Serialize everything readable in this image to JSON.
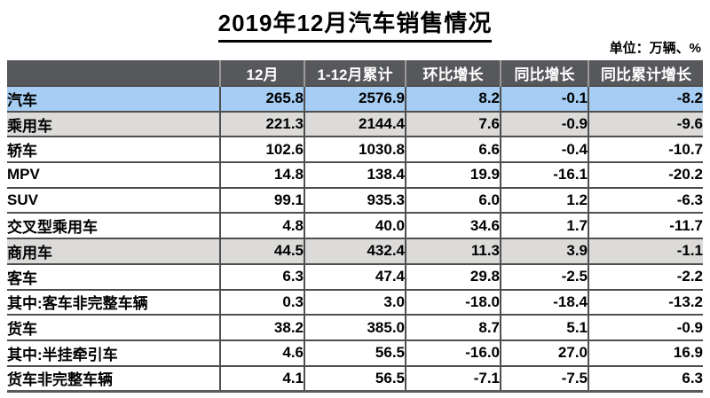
{
  "chart_data": {
    "type": "table",
    "title": "2019年12月汽车销售情况",
    "unit_label": "单位：万辆、%",
    "columns": [
      "",
      "12月",
      "1-12月累计",
      "环比增长",
      "同比增长",
      "同比累计增长"
    ],
    "rows": [
      {
        "label": "汽车",
        "indent": 0,
        "bg": "blue",
        "values": [
          "265.8",
          "2576.9",
          "8.2",
          "-0.1",
          "-8.2"
        ]
      },
      {
        "label": "乘用车",
        "indent": 1,
        "bg": "gray",
        "values": [
          "221.3",
          "2144.4",
          "7.6",
          "-0.9",
          "-9.6"
        ]
      },
      {
        "label": "轿车",
        "indent": 2,
        "bg": "white",
        "values": [
          "102.6",
          "1030.8",
          "6.6",
          "-0.4",
          "-10.7"
        ]
      },
      {
        "label": "MPV",
        "indent": 2,
        "bg": "white",
        "values": [
          "14.8",
          "138.4",
          "19.9",
          "-16.1",
          "-20.2"
        ]
      },
      {
        "label": "SUV",
        "indent": 2,
        "bg": "white",
        "values": [
          "99.1",
          "935.3",
          "6.0",
          "1.2",
          "-6.3"
        ]
      },
      {
        "label": "交叉型乘用车",
        "indent": 2,
        "bg": "white",
        "values": [
          "4.8",
          "40.0",
          "34.6",
          "1.7",
          "-11.7"
        ]
      },
      {
        "label": "商用车",
        "indent": 1,
        "bg": "gray",
        "values": [
          "44.5",
          "432.4",
          "11.3",
          "3.9",
          "-1.1"
        ]
      },
      {
        "label": "客车",
        "indent": 2,
        "bg": "white",
        "values": [
          "6.3",
          "47.4",
          "29.8",
          "-2.5",
          "-2.2"
        ]
      },
      {
        "label": "其中:客车非完整车辆",
        "indent": 3,
        "bg": "white",
        "values": [
          "0.3",
          "3.0",
          "-18.0",
          "-18.4",
          "-13.2"
        ]
      },
      {
        "label": "货车",
        "indent": 2,
        "bg": "white",
        "values": [
          "38.2",
          "385.0",
          "8.7",
          "5.1",
          "-0.9"
        ]
      },
      {
        "label": "其中:半挂牵引车",
        "indent": 3,
        "bg": "white",
        "values": [
          "4.6",
          "56.5",
          "-16.0",
          "27.0",
          "16.9"
        ]
      },
      {
        "label": "货车非完整车辆",
        "indent": 3,
        "bg": "white",
        "values": [
          "4.1",
          "56.5",
          "-7.1",
          "-7.5",
          "6.3"
        ],
        "faded_columns": [
          4
        ]
      }
    ]
  },
  "colors": {
    "header_bg": "#56585c",
    "header_text": "#ffffff",
    "highlight_blue": "#a6cdf3",
    "highlight_gray": "#dcdbd9",
    "grid_line": "#4f4f4f",
    "faded_text": "#9b9b9b"
  }
}
